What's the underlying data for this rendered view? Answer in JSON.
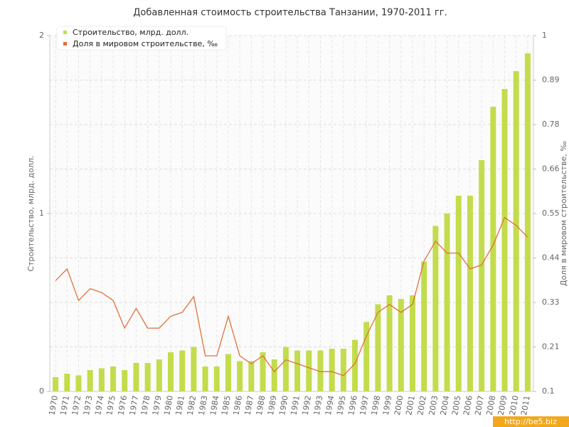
{
  "chart_data": {
    "type": "bar-line",
    "title": "Добавленная стоимость строительства Танзании, 1970-2011 гг.",
    "y_label": "Строительство, млрд. долл.",
    "y2_label": "Доля в мировом строительстве, ‰",
    "watermark": "http://be5.biz",
    "categories": [
      "1970",
      "1971",
      "1972",
      "1973",
      "1974",
      "1975",
      "1976",
      "1977",
      "1978",
      "1979",
      "1980",
      "1981",
      "1982",
      "1983",
      "1984",
      "1985",
      "1986",
      "1987",
      "1988",
      "1989",
      "1990",
      "1991",
      "1992",
      "1993",
      "1994",
      "1995",
      "1996",
      "1997",
      "1998",
      "1999",
      "2000",
      "2001",
      "2002",
      "2003",
      "2004",
      "2005",
      "2006",
      "2007",
      "2008",
      "2009",
      "2010",
      "2011"
    ],
    "series": [
      {
        "name": "Строительство, млрд. долл.",
        "type": "bar",
        "color": "#c3dc4c",
        "axis": "y",
        "values": [
          0.08,
          0.1,
          0.09,
          0.12,
          0.13,
          0.14,
          0.12,
          0.16,
          0.16,
          0.18,
          0.22,
          0.23,
          0.25,
          0.14,
          0.14,
          0.21,
          0.17,
          0.17,
          0.22,
          0.18,
          0.25,
          0.23,
          0.23,
          0.23,
          0.24,
          0.24,
          0.29,
          0.39,
          0.49,
          0.54,
          0.52,
          0.54,
          0.73,
          0.93,
          1.0,
          1.1,
          1.1,
          1.3,
          1.6,
          1.7,
          1.8,
          1.9
        ]
      },
      {
        "name": "Доля в мировом строительстве, ‰",
        "type": "line",
        "color": "#e0703c",
        "axis": "y2",
        "values": [
          0.38,
          0.41,
          0.33,
          0.36,
          0.35,
          0.33,
          0.26,
          0.31,
          0.26,
          0.26,
          0.29,
          0.3,
          0.34,
          0.19,
          0.19,
          0.29,
          0.19,
          0.17,
          0.19,
          0.15,
          0.18,
          0.17,
          0.16,
          0.15,
          0.15,
          0.14,
          0.17,
          0.24,
          0.3,
          0.32,
          0.3,
          0.32,
          0.43,
          0.48,
          0.45,
          0.45,
          0.41,
          0.42,
          0.47,
          0.54,
          0.52,
          0.49
        ]
      }
    ],
    "ylim": [
      0,
      2
    ],
    "yticks": [
      0,
      1,
      2
    ],
    "y2lim": [
      0.1,
      1
    ],
    "y2ticks": [
      0.1,
      {
        "value": 0.2125,
        "label": "0.21"
      },
      {
        "value": 0.325,
        "label": "0.33"
      },
      {
        "value": 0.4375,
        "label": "0.44"
      },
      0.55,
      {
        "value": 0.6625,
        "label": "0.66"
      },
      {
        "value": 0.775,
        "label": "0.78"
      },
      {
        "value": 0.8875,
        "label": "0.89"
      },
      1
    ],
    "grid": true,
    "legend_position": "top-left"
  }
}
